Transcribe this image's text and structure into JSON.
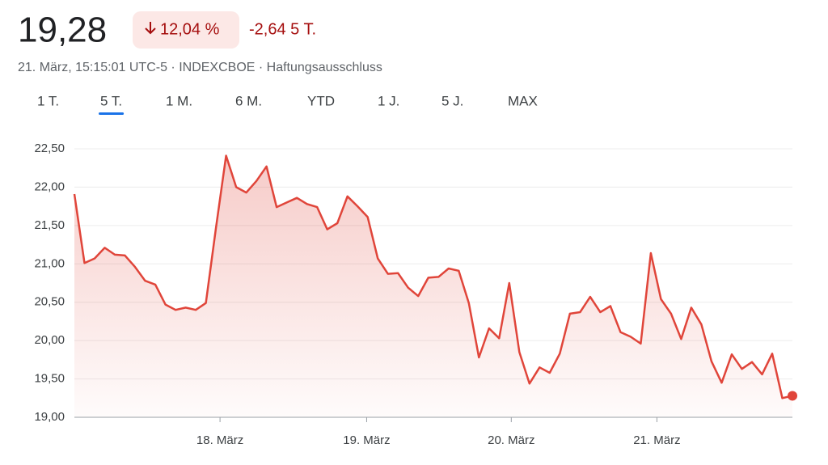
{
  "header": {
    "price": "19,28",
    "change_percent": "12,04 %",
    "change_abs": "-2,64 5 T.",
    "subtitle": "21. März, 15:15:01 UTC-5 · INDEXCBOE · Haftungsausschluss"
  },
  "tabs": [
    "1 T.",
    "5 T.",
    "1 M.",
    "6 M.",
    "YTD",
    "1 J.",
    "5 J.",
    "MAX"
  ],
  "selected_tab": 1,
  "chart_data": {
    "type": "line",
    "color": "#e0453a",
    "values": [
      21.91,
      21.01,
      21.07,
      21.21,
      21.12,
      21.11,
      20.96,
      20.78,
      20.73,
      20.47,
      20.4,
      20.43,
      20.4,
      20.49,
      21.47,
      22.41,
      22.0,
      21.93,
      22.08,
      22.27,
      21.74,
      21.8,
      21.86,
      21.78,
      21.74,
      21.45,
      21.53,
      21.88,
      21.75,
      21.61,
      21.07,
      20.87,
      20.88,
      20.69,
      20.58,
      20.82,
      20.83,
      20.94,
      20.91,
      20.49,
      19.78,
      20.16,
      20.03,
      20.75,
      19.85,
      19.44,
      19.65,
      19.58,
      19.83,
      20.35,
      20.37,
      20.57,
      20.37,
      20.45,
      20.11,
      20.05,
      19.96,
      21.14,
      20.54,
      20.35,
      20.02,
      20.43,
      20.21,
      19.73,
      19.45,
      19.82,
      19.63,
      19.72,
      19.56,
      19.83,
      19.25,
      19.28
    ],
    "xlim": [
      0,
      71
    ],
    "xticks": [
      {
        "value": 14.4,
        "label": "18. März"
      },
      {
        "value": 28.9,
        "label": "19. März"
      },
      {
        "value": 43.2,
        "label": "20. März"
      },
      {
        "value": 57.6,
        "label": "21. März"
      }
    ],
    "ylim": [
      19,
      22.5
    ],
    "yticks": [
      {
        "value": 19,
        "label": "19,00"
      },
      {
        "value": 19.5,
        "label": "19,50"
      },
      {
        "value": 20,
        "label": "20,00"
      },
      {
        "value": 20.5,
        "label": "20,50"
      },
      {
        "value": 21,
        "label": "21,00"
      },
      {
        "value": 21.5,
        "label": "21,50"
      },
      {
        "value": 22,
        "label": "22,00"
      },
      {
        "value": 22.5,
        "label": "22,50"
      }
    ],
    "grid": true
  }
}
